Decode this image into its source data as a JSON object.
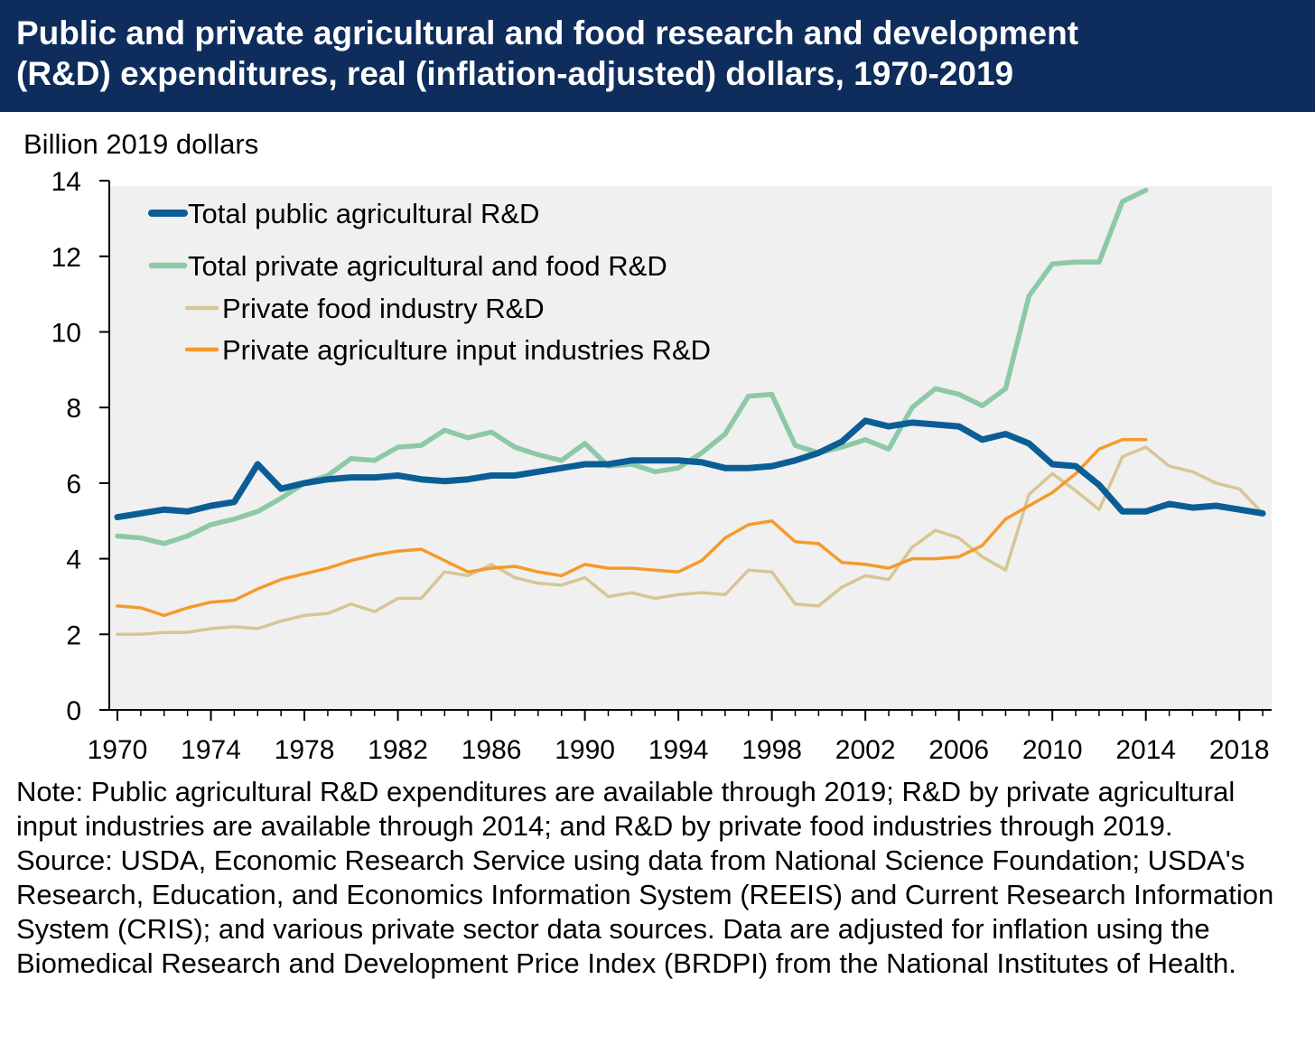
{
  "header": {
    "title_line1": "Public and private agricultural and food research and development",
    "title_line2": "(R&D) expenditures, real (inflation-adjusted) dollars, 1970-2019"
  },
  "colors": {
    "header_bg": "#0e2d5c",
    "plot_bg": "#f0f0f0",
    "public": "#0b5e95",
    "private_total": "#8dc9a6",
    "food": "#d7c694",
    "input": "#f59a2a"
  },
  "chart_data": {
    "type": "line",
    "ylabel": "Billion 2019 dollars",
    "ylim": [
      0,
      14
    ],
    "xlim": [
      1970,
      2019
    ],
    "yticks": [
      "0",
      "2",
      "4",
      "6",
      "8",
      "10",
      "12",
      "14"
    ],
    "xticks": [
      "1970",
      "1974",
      "1978",
      "1982",
      "1986",
      "1990",
      "1994",
      "1998",
      "2002",
      "2006",
      "2010",
      "2014",
      "2018"
    ],
    "legend_position": "top-left",
    "grid": false,
    "series": [
      {
        "name": "Total public agricultural R&D",
        "color_key": "public",
        "start": 1970,
        "values": [
          5.1,
          5.2,
          5.3,
          5.25,
          5.4,
          5.5,
          6.5,
          5.85,
          6.0,
          6.1,
          6.15,
          6.15,
          6.2,
          6.1,
          6.05,
          6.1,
          6.2,
          6.2,
          6.3,
          6.4,
          6.5,
          6.5,
          6.6,
          6.6,
          6.6,
          6.55,
          6.4,
          6.4,
          6.45,
          6.6,
          6.8,
          7.1,
          7.65,
          7.5,
          7.6,
          7.55,
          7.5,
          7.15,
          7.3,
          7.05,
          6.5,
          6.45,
          5.95,
          5.25,
          5.25,
          5.45,
          5.35,
          5.4,
          5.3,
          5.2
        ]
      },
      {
        "name": "Total private agricultural and food R&D",
        "color_key": "private_total",
        "start": 1970,
        "values": [
          4.6,
          4.55,
          4.4,
          4.6,
          4.9,
          5.05,
          5.25,
          5.6,
          6.0,
          6.2,
          6.65,
          6.6,
          6.95,
          7.0,
          7.4,
          7.2,
          7.35,
          6.95,
          6.75,
          6.6,
          7.05,
          6.45,
          6.5,
          6.3,
          6.4,
          6.8,
          7.3,
          8.3,
          8.35,
          7.0,
          6.8,
          6.95,
          7.15,
          6.9,
          8.0,
          8.5,
          8.35,
          8.05,
          8.5,
          10.95,
          11.8,
          11.85,
          11.85,
          13.45,
          13.75
        ]
      },
      {
        "name": "Private food industry R&D",
        "color_key": "food",
        "start": 1970,
        "values": [
          2.0,
          2.0,
          2.05,
          2.05,
          2.15,
          2.2,
          2.15,
          2.35,
          2.5,
          2.55,
          2.8,
          2.6,
          2.95,
          2.95,
          3.65,
          3.55,
          3.85,
          3.5,
          3.35,
          3.3,
          3.5,
          3.0,
          3.1,
          2.95,
          3.05,
          3.1,
          3.05,
          3.7,
          3.65,
          2.8,
          2.75,
          3.25,
          3.55,
          3.45,
          4.3,
          4.75,
          4.55,
          4.05,
          3.7,
          5.7,
          6.25,
          5.8,
          5.3,
          6.7,
          6.95,
          6.45,
          6.3,
          6.0,
          5.85,
          5.2
        ]
      },
      {
        "name": "Private agriculture input industries R&D",
        "color_key": "input",
        "start": 1970,
        "values": [
          2.75,
          2.7,
          2.5,
          2.7,
          2.85,
          2.9,
          3.2,
          3.45,
          3.6,
          3.75,
          3.95,
          4.1,
          4.2,
          4.25,
          3.95,
          3.65,
          3.75,
          3.8,
          3.65,
          3.55,
          3.85,
          3.75,
          3.75,
          3.7,
          3.65,
          3.95,
          4.55,
          4.9,
          5.0,
          4.45,
          4.4,
          3.9,
          3.85,
          3.75,
          4.0,
          4.0,
          4.05,
          4.35,
          5.05,
          5.4,
          5.75,
          6.25,
          6.9,
          7.15,
          7.15
        ]
      }
    ]
  },
  "notes": {
    "note": "Note: Public agricultural R&D expenditures are available through 2019; R&D by private agricultural input industries are available through 2014; and R&D by private food industries through 2019.",
    "source": "Source: USDA, Economic Research Service using data from National Science Foundation; USDA's Research, Education, and Economics Information System (REEIS) and Current Research Information System (CRIS); and various private sector data sources. Data are adjusted for inflation using the Biomedical Research and Development Price Index (BRDPI) from the National Institutes of Health."
  }
}
